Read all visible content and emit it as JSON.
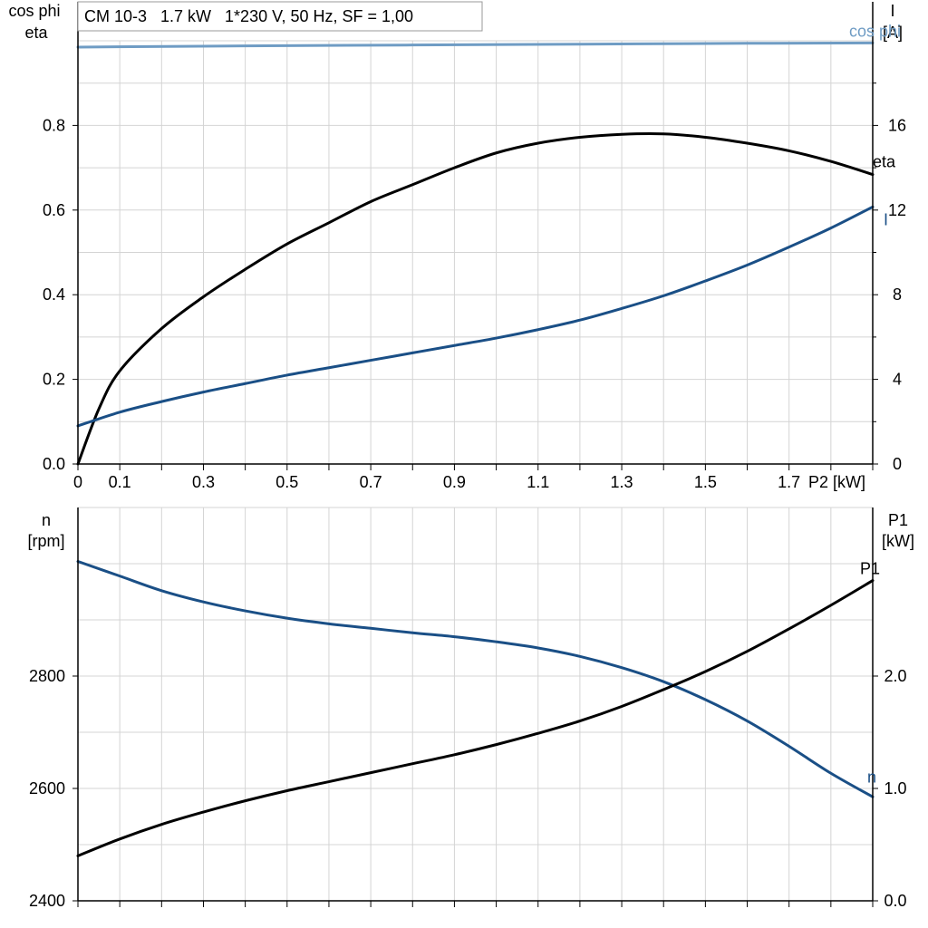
{
  "chart_data": [
    {
      "type": "line",
      "title": "CM 10-3   1.7 kW   1*230 V, 50 Hz, SF = 1,00",
      "xlabel": "P2 [kW]",
      "xlim": [
        0,
        1.9
      ],
      "x_ticks": [
        0,
        0.1,
        0.3,
        0.5,
        0.7,
        0.9,
        1.1,
        1.3,
        1.5,
        1.7
      ],
      "x_tick_labels": [
        "0",
        "0.1",
        "0.3",
        "0.5",
        "0.7",
        "0.9",
        "1.1",
        "1.3",
        "1.5",
        "1.7"
      ],
      "y_left_label_line1": "cos phi",
      "y_left_label_line2": "eta",
      "y_left_lim": [
        0,
        1.0
      ],
      "y_left_ticks": [
        0,
        0.2,
        0.4,
        0.6,
        0.8
      ],
      "y_left_tick_labels": [
        "0.0",
        "0.2",
        "0.4",
        "0.6",
        "0.8"
      ],
      "y_right_label_line1": "I",
      "y_right_label_line2": "[A]",
      "y_right_lim": [
        0,
        20
      ],
      "y_right_ticks": [
        0,
        4,
        8,
        12,
        16
      ],
      "y_right_tick_labels": [
        "0",
        "4",
        "8",
        "12",
        "16"
      ],
      "grid": true,
      "series": [
        {
          "name": "cos phi",
          "axis": "left",
          "color": "#6f9cc4",
          "x": [
            0,
            0.4,
            0.8,
            1.2,
            1.6,
            1.9
          ],
          "y": [
            0.985,
            0.988,
            0.99,
            0.992,
            0.994,
            0.995
          ]
        },
        {
          "name": "eta",
          "axis": "left",
          "color": "#000000",
          "x": [
            0,
            0.05,
            0.1,
            0.2,
            0.3,
            0.4,
            0.5,
            0.6,
            0.7,
            0.8,
            0.9,
            1.0,
            1.1,
            1.2,
            1.3,
            1.4,
            1.5,
            1.6,
            1.7,
            1.8,
            1.9
          ],
          "y": [
            0.0,
            0.13,
            0.22,
            0.32,
            0.395,
            0.46,
            0.52,
            0.57,
            0.62,
            0.66,
            0.7,
            0.735,
            0.758,
            0.772,
            0.779,
            0.78,
            0.772,
            0.758,
            0.74,
            0.715,
            0.684
          ]
        },
        {
          "name": "I",
          "axis": "right",
          "color": "#1a4f86",
          "x": [
            0,
            0.1,
            0.2,
            0.3,
            0.4,
            0.5,
            0.6,
            0.7,
            0.8,
            0.9,
            1.0,
            1.1,
            1.2,
            1.3,
            1.4,
            1.5,
            1.6,
            1.7,
            1.8,
            1.9
          ],
          "y": [
            1.8,
            2.45,
            2.95,
            3.4,
            3.8,
            4.2,
            4.55,
            4.9,
            5.25,
            5.6,
            5.95,
            6.35,
            6.8,
            7.35,
            7.95,
            8.65,
            9.4,
            10.25,
            11.15,
            12.15
          ]
        }
      ]
    },
    {
      "type": "line",
      "xlim": [
        0,
        1.9
      ],
      "y_left_label_line1": "n",
      "y_left_label_line2": "[rpm]",
      "y_left_lim": [
        2400,
        3100
      ],
      "y_left_ticks": [
        2400,
        2600,
        2800
      ],
      "y_left_tick_labels": [
        "2400",
        "2600",
        "2800"
      ],
      "y_right_label_line1": "P1",
      "y_right_label_line2": "[kW]",
      "y_right_lim": [
        0,
        3.5
      ],
      "y_right_ticks": [
        0,
        1.0,
        2.0
      ],
      "y_right_tick_labels": [
        "0.0",
        "1.0",
        "2.0"
      ],
      "grid": true,
      "series": [
        {
          "name": "n",
          "axis": "left",
          "color": "#1a4f86",
          "x": [
            0,
            0.1,
            0.2,
            0.3,
            0.4,
            0.5,
            0.6,
            0.7,
            0.8,
            0.9,
            1.0,
            1.1,
            1.2,
            1.3,
            1.4,
            1.5,
            1.6,
            1.7,
            1.8,
            1.9
          ],
          "y": [
            3004,
            2978,
            2952,
            2932,
            2916,
            2903,
            2893,
            2885,
            2877,
            2870,
            2861,
            2850,
            2835,
            2815,
            2790,
            2758,
            2720,
            2675,
            2627,
            2585
          ]
        },
        {
          "name": "P1",
          "axis": "right",
          "color": "#000000",
          "x": [
            0,
            0.1,
            0.2,
            0.3,
            0.4,
            0.5,
            0.6,
            0.7,
            0.8,
            0.9,
            1.0,
            1.1,
            1.2,
            1.3,
            1.4,
            1.5,
            1.6,
            1.7,
            1.8,
            1.9
          ],
          "y": [
            0.4,
            0.55,
            0.68,
            0.79,
            0.89,
            0.98,
            1.06,
            1.14,
            1.22,
            1.3,
            1.39,
            1.49,
            1.6,
            1.73,
            1.88,
            2.04,
            2.22,
            2.42,
            2.63,
            2.85
          ]
        }
      ]
    }
  ]
}
